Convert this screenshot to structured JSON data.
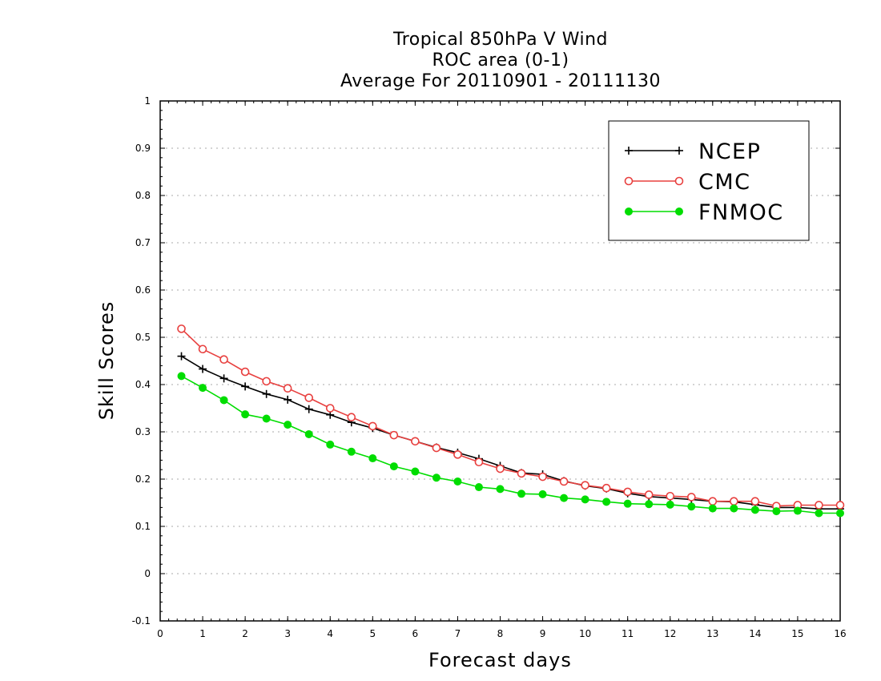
{
  "chart_data": {
    "type": "line",
    "title_lines": [
      "Tropical 850hPa V Wind",
      "ROC area (0-1)",
      "Average For 20110901 - 20111130"
    ],
    "xlabel": "Forecast days",
    "ylabel": "Skill Scores",
    "xlim": [
      0,
      16
    ],
    "ylim": [
      -0.1,
      1
    ],
    "xticks": [
      "0",
      "1",
      "2",
      "3",
      "4",
      "5",
      "6",
      "7",
      "8",
      "9",
      "10",
      "11",
      "12",
      "13",
      "14",
      "15",
      "16"
    ],
    "yticks": [
      "-0.1",
      "0",
      "0.1",
      "0.2",
      "0.3",
      "0.4",
      "0.5",
      "0.6",
      "0.7",
      "0.8",
      "0.9",
      "1"
    ],
    "grid": true,
    "legend_position": "top-right",
    "x": [
      0.5,
      1,
      1.5,
      2,
      2.5,
      3,
      3.5,
      4,
      4.5,
      5,
      5.5,
      6,
      6.5,
      7,
      7.5,
      8,
      8.5,
      9,
      9.5,
      10,
      10.5,
      11,
      11.5,
      12,
      12.5,
      13,
      13.5,
      14,
      14.5,
      15,
      15.5,
      16
    ],
    "series": [
      {
        "name": "NCEP",
        "color": "#000000",
        "marker": "plus",
        "values": [
          0.46,
          0.433,
          0.413,
          0.396,
          0.38,
          0.368,
          0.348,
          0.336,
          0.32,
          0.308,
          0.293,
          0.28,
          0.267,
          0.256,
          0.243,
          0.228,
          0.213,
          0.21,
          0.196,
          0.186,
          0.18,
          0.17,
          0.163,
          0.16,
          0.157,
          0.153,
          0.152,
          0.146,
          0.14,
          0.14,
          0.137,
          0.137
        ]
      },
      {
        "name": "CMC",
        "color": "#e8403f",
        "marker": "open-circle",
        "values": [
          0.518,
          0.475,
          0.453,
          0.427,
          0.407,
          0.392,
          0.372,
          0.35,
          0.331,
          0.312,
          0.293,
          0.28,
          0.266,
          0.252,
          0.236,
          0.222,
          0.212,
          0.205,
          0.195,
          0.187,
          0.181,
          0.173,
          0.167,
          0.164,
          0.162,
          0.153,
          0.153,
          0.153,
          0.143,
          0.145,
          0.145,
          0.145
        ]
      },
      {
        "name": "FNMOC",
        "color": "#00dd00",
        "marker": "filled-circle",
        "values": [
          0.418,
          0.393,
          0.367,
          0.337,
          0.328,
          0.315,
          0.295,
          0.273,
          0.258,
          0.244,
          0.227,
          0.216,
          0.203,
          0.195,
          0.183,
          0.179,
          0.169,
          0.168,
          0.16,
          0.157,
          0.152,
          0.148,
          0.147,
          0.146,
          0.142,
          0.138,
          0.138,
          0.135,
          0.132,
          0.133,
          0.128,
          0.128
        ]
      }
    ]
  }
}
